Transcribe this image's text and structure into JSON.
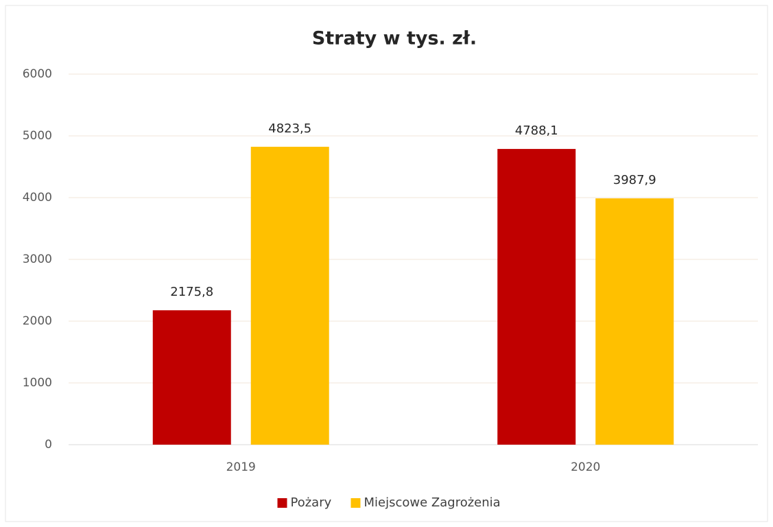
{
  "chart_data": {
    "type": "bar",
    "title": "Straty w tys. zł.",
    "categories": [
      "2019",
      "2020"
    ],
    "series": [
      {
        "name": "Pożary",
        "color": "#c00000",
        "values": [
          2175.8,
          4788.1
        ],
        "value_labels": [
          "2175,8",
          "4788,1"
        ]
      },
      {
        "name": "Miejscowe Zagrożenia",
        "color": "#ffc000",
        "values": [
          4823.5,
          3987.9
        ],
        "value_labels": [
          "4823,5",
          "3987,9"
        ]
      }
    ],
    "ylim": [
      0,
      6000
    ],
    "yticks": [
      0,
      1000,
      2000,
      3000,
      4000,
      5000,
      6000
    ],
    "grid": true,
    "legend": "bottom"
  }
}
